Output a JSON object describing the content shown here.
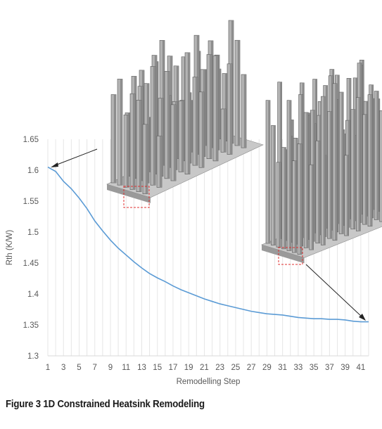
{
  "caption": "Figure 3 1D Constrained Heatsink Remodeling",
  "chart_data": {
    "type": "line",
    "xlabel": "Remodelling Step",
    "ylabel": "Rth (K/W)",
    "ylim": [
      1.3,
      1.65
    ],
    "yticks": [
      1.3,
      1.35,
      1.4,
      1.45,
      1.5,
      1.55,
      1.6,
      1.65
    ],
    "xticks": [
      1,
      3,
      5,
      7,
      9,
      11,
      13,
      15,
      17,
      19,
      21,
      23,
      25,
      27,
      29,
      31,
      33,
      35,
      37,
      39,
      41
    ],
    "xlim": [
      1,
      42
    ],
    "grid": "vertical",
    "series": [
      {
        "color": "#5b9bd5",
        "x": [
          1,
          2,
          3,
          4,
          5,
          6,
          7,
          8,
          9,
          10,
          11,
          12,
          13,
          14,
          15,
          16,
          17,
          18,
          19,
          20,
          21,
          22,
          23,
          24,
          25,
          26,
          27,
          28,
          29,
          30,
          31,
          32,
          33,
          34,
          35,
          36,
          37,
          38,
          39,
          40,
          41,
          42
        ],
        "values": [
          1.605,
          1.598,
          1.582,
          1.57,
          1.555,
          1.538,
          1.518,
          1.502,
          1.487,
          1.474,
          1.463,
          1.452,
          1.442,
          1.433,
          1.426,
          1.42,
          1.413,
          1.407,
          1.402,
          1.397,
          1.392,
          1.388,
          1.384,
          1.381,
          1.378,
          1.375,
          1.372,
          1.37,
          1.368,
          1.367,
          1.366,
          1.364,
          1.362,
          1.361,
          1.36,
          1.36,
          1.359,
          1.359,
          1.358,
          1.356,
          1.355,
          1.355
        ]
      }
    ],
    "annotations": [
      {
        "type": "arrow",
        "label": "heatsink-initial",
        "from_step": "initial"
      },
      {
        "type": "arrow",
        "label": "heatsink-final",
        "from_step": "final"
      }
    ]
  }
}
